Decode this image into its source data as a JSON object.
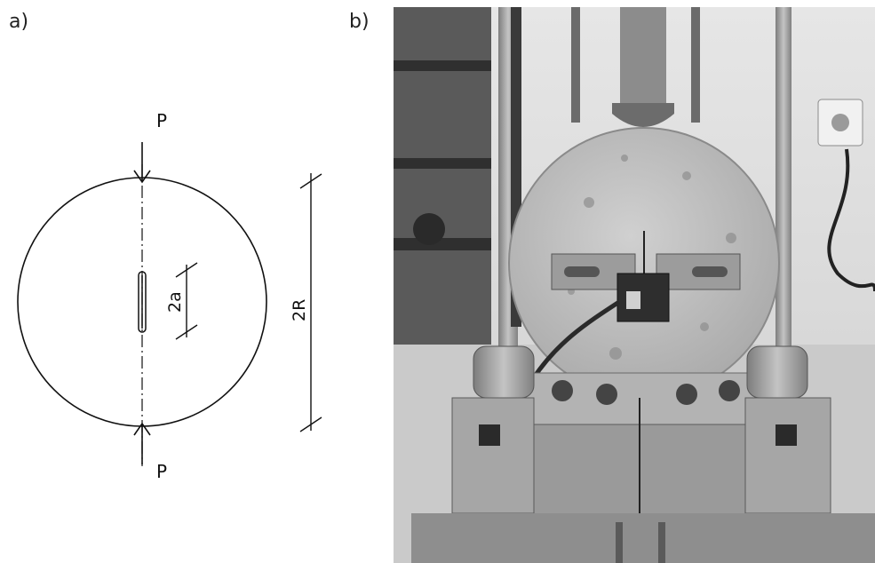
{
  "panels": {
    "a": {
      "label": "a)"
    },
    "b": {
      "label": "b)"
    }
  },
  "diagram": {
    "load_top": "P",
    "load_bottom": "P",
    "crack_dim": "2a",
    "diameter_dim": "2R"
  },
  "colors": {
    "ink": "#111111",
    "photo_bg": "#d9d9d9",
    "steel": "#a3a3a3",
    "concrete": "#bdbdbd"
  }
}
